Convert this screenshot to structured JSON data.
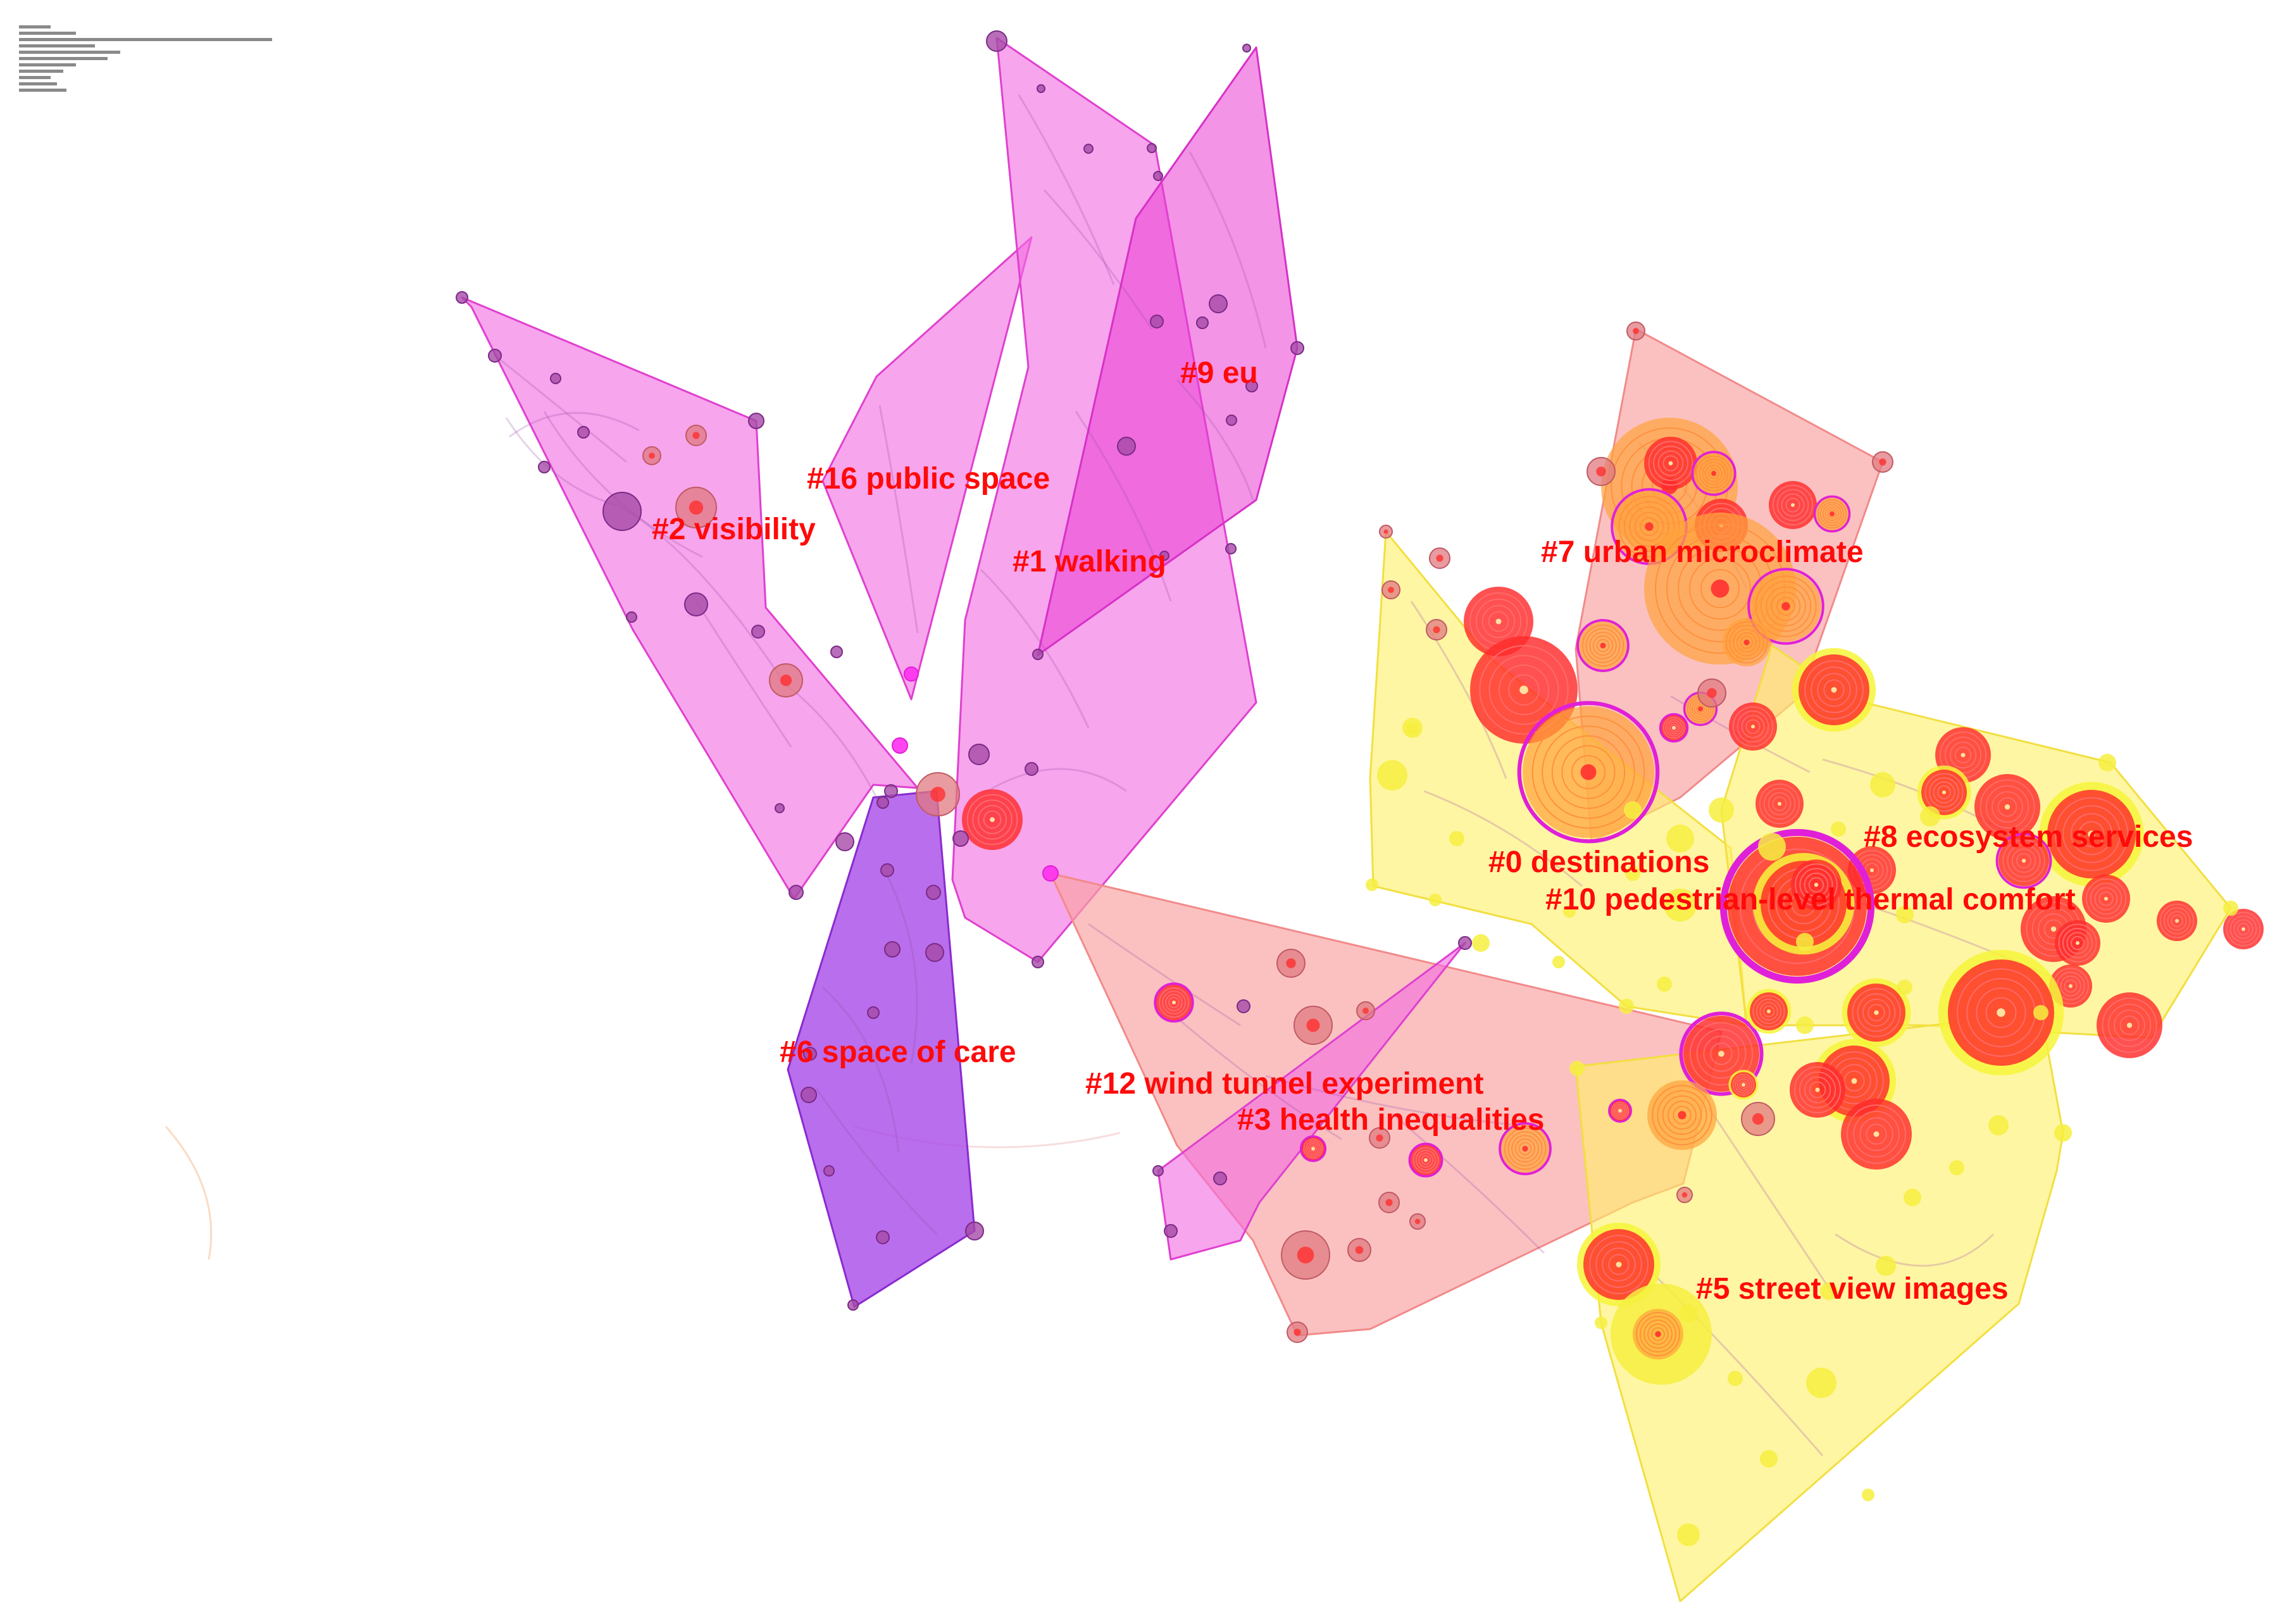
{
  "colors": {
    "label": "#ff0a0a",
    "magenta_hull": "#f26ee0",
    "purple_hull": "#a84ae8",
    "salmon_hull": "#f9a3a3",
    "yellow_hull": "#fff06a",
    "node_red": "#ff2b2b",
    "node_orange": "#ffa23a",
    "node_purple": "#a64aa8",
    "node_ring_yellow": "#f6f53a",
    "node_ring_magenta": "#e020d8"
  },
  "clusters": [
    {
      "id": 0,
      "label": "#0 destinations"
    },
    {
      "id": 1,
      "label": "#1 walking"
    },
    {
      "id": 2,
      "label": "#2 visibility"
    },
    {
      "id": 3,
      "label": "#3 health inequalities"
    },
    {
      "id": 5,
      "label": "#5 street view images"
    },
    {
      "id": 6,
      "label": "#6 space of care"
    },
    {
      "id": 7,
      "label": "#7 urban microclimate"
    },
    {
      "id": 8,
      "label": "#8 ecosystem services"
    },
    {
      "id": 9,
      "label": "#9 eu"
    },
    {
      "id": 10,
      "label": "#10 pedestrian-level thermal comfort"
    },
    {
      "id": 12,
      "label": "#12 wind tunnel experiment"
    },
    {
      "id": 16,
      "label": "#16 public space"
    }
  ]
}
